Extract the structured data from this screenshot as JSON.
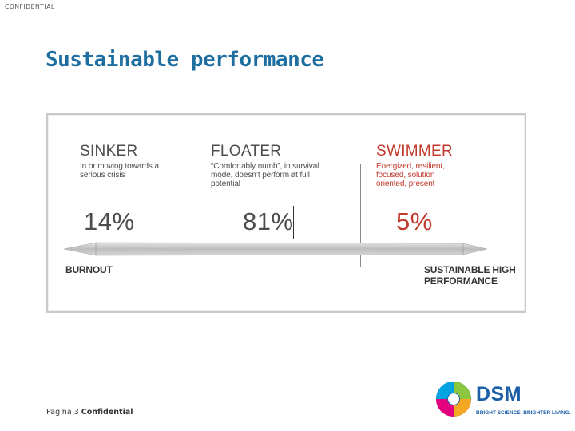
{
  "header": {
    "confidential_label": "CONFIDENTIAL"
  },
  "slide": {
    "title": "Sustainable performance"
  },
  "figure": {
    "columns": [
      {
        "heading": "SINKER",
        "description": [
          "In or moving towards a",
          "serious crisis"
        ],
        "percent": "14%"
      },
      {
        "heading": "FLOATER",
        "description": [
          "“Comfortably numb”, in survival",
          "mode, doesn’t perform at full",
          "potential"
        ],
        "percent": "81%"
      },
      {
        "heading": "SWIMMER",
        "description": [
          "Energized, resilient,",
          "focused, solution",
          "oriented, present"
        ],
        "percent": "5%"
      }
    ],
    "axis_left_label": "BURNOUT",
    "axis_right_label": [
      "SUSTAINABLE HIGH",
      "PERFORMANCE"
    ],
    "colors": {
      "grey_text": "#4d4d4d",
      "red_text": "#c0392b",
      "bar": "#c4c4c4"
    }
  },
  "footer": {
    "page_prefix": "Pagina 3",
    "confidential": "Confidential"
  },
  "logo": {
    "word": "DSM",
    "tagline": "BRIGHT SCIENCE. BRIGHTER LIVING."
  }
}
